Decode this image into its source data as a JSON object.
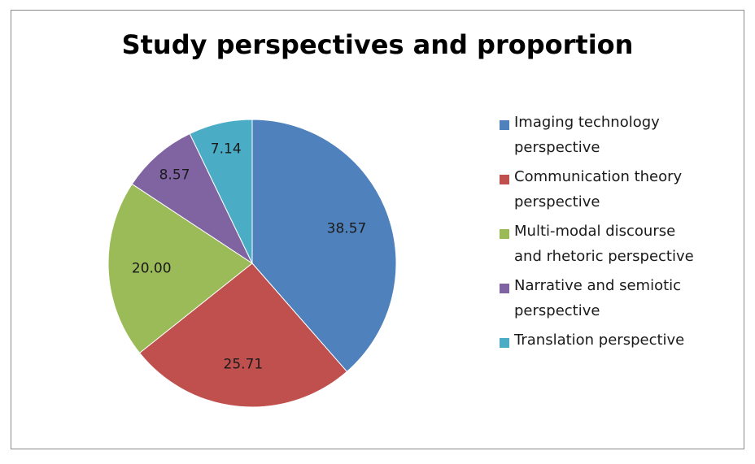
{
  "chart_data": {
    "type": "pie",
    "title": "Study perspectives and proportion",
    "legend_position": "right",
    "categories": [
      "Imaging technology perspective",
      "Communication theory perspective",
      "Multi-modal discourse and rhetoric perspective",
      "Narrative and semiotic perspective",
      "Translation perspective"
    ],
    "values": [
      38.57,
      25.71,
      20.0,
      8.57,
      7.14
    ],
    "data_labels": [
      "38.57",
      "25.71",
      "20.00",
      "8.57",
      "7.14"
    ],
    "colors": [
      "#4f81bd",
      "#c0504d",
      "#9bbb59",
      "#8064a2",
      "#4bacc6"
    ],
    "legend_lines": [
      [
        "Imaging technology",
        "perspective"
      ],
      [
        "Communication theory",
        "perspective"
      ],
      [
        "Multi-modal discourse",
        "and rhetoric perspective"
      ],
      [
        "Narrative and semiotic",
        "perspective"
      ],
      [
        "Translation perspective"
      ]
    ]
  }
}
